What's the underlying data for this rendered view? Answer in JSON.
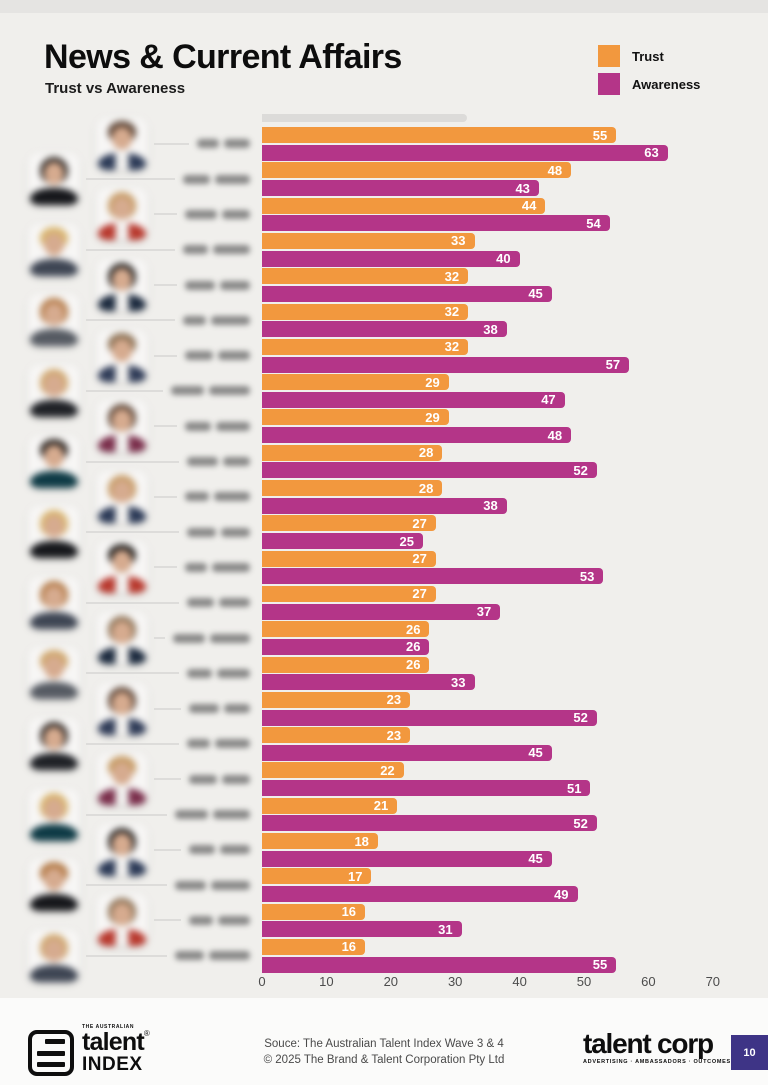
{
  "page": {
    "title": "News & Current Affairs",
    "subtitle": "Trust vs Awareness"
  },
  "legend": {
    "trust": "Trust",
    "awareness": "Awareness"
  },
  "colors": {
    "trust": "#F2983E",
    "awareness": "#B43588",
    "page_badge": "#3E3486"
  },
  "chart_data": {
    "type": "bar",
    "orientation": "horizontal",
    "title": "News & Current Affairs",
    "subtitle": "Trust vs Awareness",
    "xlim": [
      0,
      70
    ],
    "xticks": [
      0,
      10,
      20,
      30,
      40,
      50,
      60,
      70
    ],
    "grid": false,
    "legend_position": "top-right",
    "categories_blurred": true,
    "num_people": 24,
    "series": [
      {
        "name": "Trust",
        "color": "#F2983E",
        "values": [
          55,
          48,
          44,
          33,
          32,
          32,
          32,
          29,
          29,
          28,
          28,
          27,
          27,
          27,
          26,
          26,
          23,
          23,
          22,
          21,
          18,
          17,
          16,
          16
        ]
      },
      {
        "name": "Awareness",
        "color": "#B43588",
        "values": [
          63,
          43,
          54,
          40,
          45,
          38,
          57,
          47,
          48,
          52,
          38,
          25,
          53,
          37,
          26,
          33,
          52,
          45,
          51,
          52,
          45,
          49,
          31,
          55
        ]
      }
    ]
  },
  "footer": {
    "source_line1": "Souce: The Australian Talent Index Wave 3 & 4",
    "source_line2": "© 2025 The Brand & Talent Corporation Pty Ltd",
    "logo_left_small": "THE AUSTRALIAN",
    "logo_left_word1": "talent",
    "logo_left_reg": "®",
    "logo_left_word2": "INDEX",
    "logo_right_text": "talent corp",
    "logo_right_tagline": "ADVERTISING · AMBASSADORS · OUTCOMES",
    "page_number": "10"
  }
}
